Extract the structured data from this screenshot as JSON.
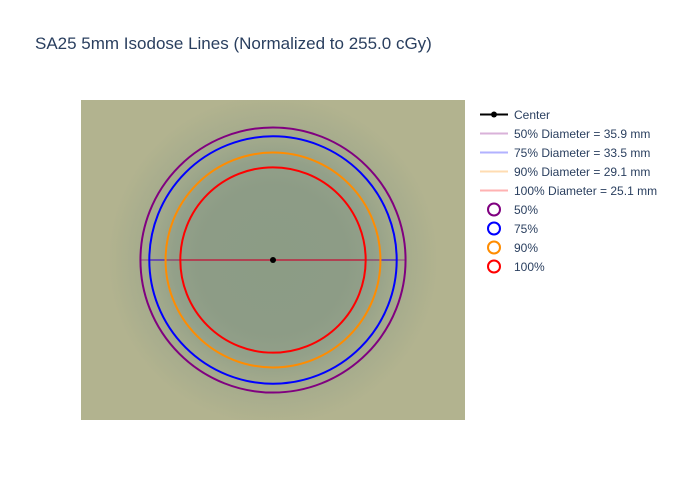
{
  "chart_data": {
    "type": "scatter",
    "title": "SA25 5mm Isodose Lines (Normalized to 255.0 cGy)",
    "xlabel": "",
    "ylabel": "",
    "xlim": [
      -26,
      26
    ],
    "ylim": [
      -21.7,
      21.7
    ],
    "background": "dose image (film scan), olive/grey",
    "grid": false,
    "legend_position": "right",
    "center": {
      "name": "Center",
      "x": 0,
      "y": 0,
      "color": "#000000"
    },
    "isodose_levels": [
      {
        "name": "50%",
        "diameter_mm": 35.9,
        "color": "#800080",
        "legend_label": "50% Diameter = 35.9 mm"
      },
      {
        "name": "75%",
        "diameter_mm": 33.5,
        "color": "#0000ff",
        "legend_label": "75% Diameter = 33.5 mm"
      },
      {
        "name": "90%",
        "diameter_mm": 29.1,
        "color": "#ff8c00",
        "legend_label": "90% Diameter = 29.1 mm"
      },
      {
        "name": "100%",
        "diameter_mm": 25.1,
        "color": "#ff0000",
        "legend_label": "100% Diameter = 25.1 mm"
      }
    ],
    "colors": {
      "image_outer": "#b2b38f",
      "image_inner": "#8c9c85"
    }
  }
}
